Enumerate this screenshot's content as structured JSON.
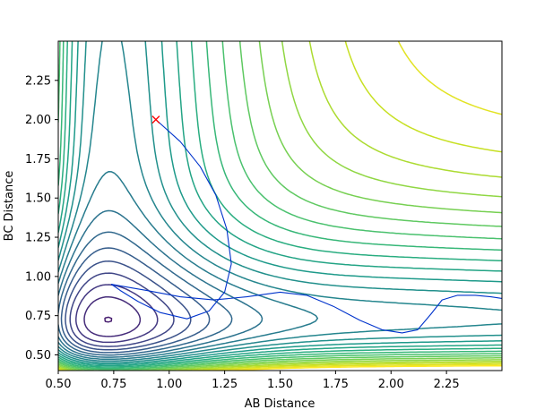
{
  "chart_data": {
    "type": "contour",
    "title": "",
    "xlabel": "AB Distance",
    "ylabel": "BC Distance",
    "xlim": [
      0.5,
      2.5
    ],
    "ylim": [
      0.4,
      2.5
    ],
    "x_ticks": [
      "0.50",
      "0.75",
      "1.00",
      "1.25",
      "1.50",
      "1.75",
      "2.00",
      "2.25"
    ],
    "y_ticks": [
      "0.50",
      "0.75",
      "1.00",
      "1.25",
      "1.50",
      "1.75",
      "2.00",
      "2.25"
    ],
    "colormap": "viridis",
    "contour_levels": 25,
    "contour_colors": [
      "#440154",
      "#482173",
      "#433e85",
      "#38588c",
      "#2d708e",
      "#25858e",
      "#1e9b8a",
      "#2ab07f",
      "#52c569",
      "#86d549",
      "#c2df23",
      "#fde725"
    ],
    "start_marker": {
      "x": 0.94,
      "y": 2.0,
      "symbol": "x",
      "color": "#ff0000"
    },
    "trajectory": {
      "color": "#0033cc",
      "points": [
        [
          0.94,
          2.0
        ],
        [
          1.05,
          1.86
        ],
        [
          1.14,
          1.7
        ],
        [
          1.21,
          1.52
        ],
        [
          1.26,
          1.3
        ],
        [
          1.28,
          1.08
        ],
        [
          1.25,
          0.9
        ],
        [
          1.18,
          0.78
        ],
        [
          1.08,
          0.73
        ],
        [
          0.96,
          0.77
        ],
        [
          0.86,
          0.84
        ],
        [
          0.78,
          0.91
        ],
        [
          0.74,
          0.95
        ],
        [
          0.78,
          0.94
        ],
        [
          0.9,
          0.91
        ],
        [
          1.05,
          0.87
        ],
        [
          1.2,
          0.85
        ],
        [
          1.35,
          0.87
        ],
        [
          1.5,
          0.9
        ],
        [
          1.62,
          0.88
        ],
        [
          1.74,
          0.81
        ],
        [
          1.86,
          0.72
        ],
        [
          1.96,
          0.66
        ],
        [
          2.05,
          0.64
        ],
        [
          2.12,
          0.66
        ],
        [
          2.18,
          0.76
        ],
        [
          2.23,
          0.85
        ],
        [
          2.3,
          0.88
        ],
        [
          2.38,
          0.88
        ],
        [
          2.45,
          0.87
        ],
        [
          2.5,
          0.86
        ]
      ]
    }
  }
}
